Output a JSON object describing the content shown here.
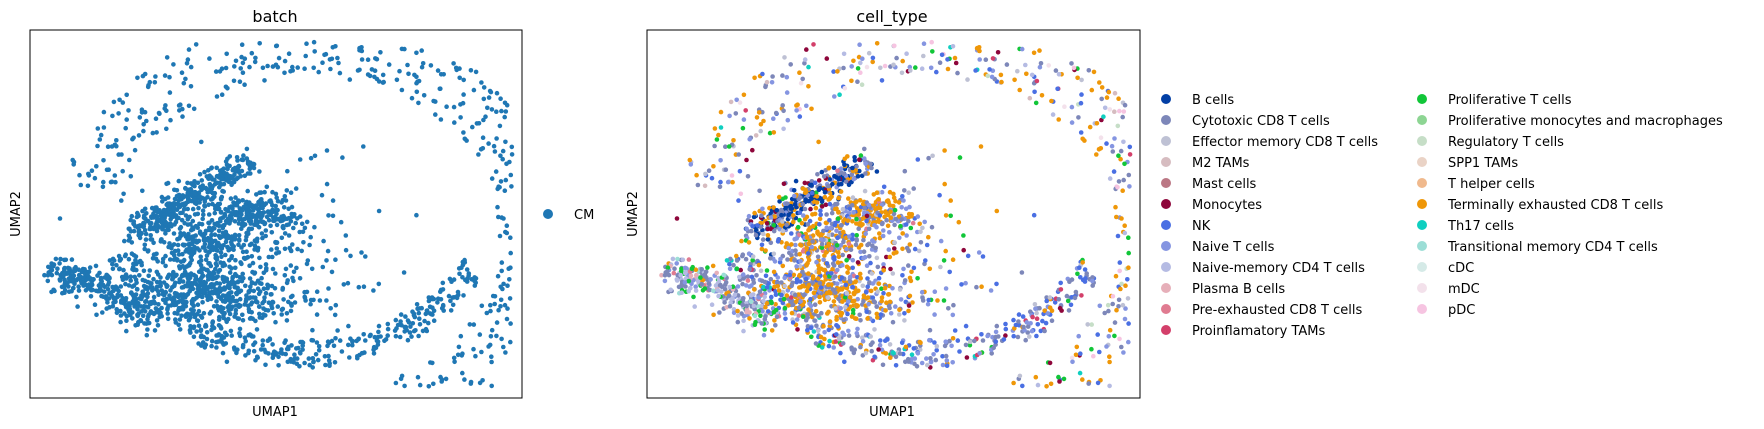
{
  "chart_data": [
    {
      "type": "scatter",
      "title": "batch",
      "xlabel": "UMAP1",
      "ylabel": "UMAP2",
      "grid": false,
      "legend_placement": "right",
      "legend": [
        {
          "name": "CM",
          "color": "#1f77b4"
        }
      ]
    },
    {
      "type": "scatter",
      "title": "cell_type",
      "xlabel": "UMAP1",
      "ylabel": "UMAP2",
      "grid": false,
      "legend_placement": "right",
      "legend": [
        {
          "name": "B cells",
          "color": "#023fa5"
        },
        {
          "name": "Cytotoxic CD8 T cells",
          "color": "#7d87b9"
        },
        {
          "name": "Effector memory CD8 T cells",
          "color": "#bec1d4"
        },
        {
          "name": "M2 TAMs",
          "color": "#d6bcc0"
        },
        {
          "name": "Mast cells",
          "color": "#bb7784"
        },
        {
          "name": "Monocytes",
          "color": "#8e063b"
        },
        {
          "name": "NK",
          "color": "#4a6fe3"
        },
        {
          "name": "Naive T cells",
          "color": "#8595e1"
        },
        {
          "name": "Naive-memory CD4 T cells",
          "color": "#b5bbe3"
        },
        {
          "name": "Plasma B cells",
          "color": "#e6afb9"
        },
        {
          "name": "Pre-exhausted CD8 T cells",
          "color": "#e07b91"
        },
        {
          "name": "Proinflamatory TAMs",
          "color": "#d33f6a"
        },
        {
          "name": "Proliferative T cells",
          "color": "#11c638"
        },
        {
          "name": "Proliferative monocytes and macrophages",
          "color": "#8dd593"
        },
        {
          "name": "Regulatory T cells",
          "color": "#c6dec7"
        },
        {
          "name": "SPP1 TAMs",
          "color": "#ead3c6"
        },
        {
          "name": "T helper cells",
          "color": "#f0b98d"
        },
        {
          "name": "Terminally exhausted CD8 T cells",
          "color": "#ef9708"
        },
        {
          "name": "Th17 cells",
          "color": "#0fcfc0"
        },
        {
          "name": "Transitional memory CD4 T cells",
          "color": "#9cded6"
        },
        {
          "name": "cDC",
          "color": "#d5eae7"
        },
        {
          "name": "mDC",
          "color": "#f3e1eb"
        },
        {
          "name": "pDC",
          "color": "#f6c4e1"
        }
      ]
    }
  ]
}
